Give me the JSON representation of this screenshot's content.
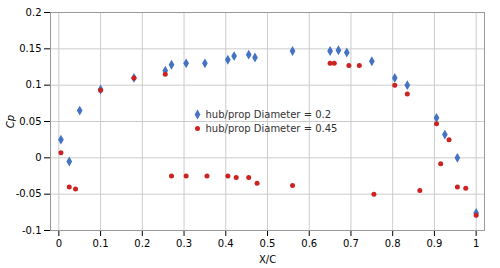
{
  "chart_data": {
    "type": "scatter",
    "xlabel": "X/C",
    "ylabel": "Cp",
    "xlim": [
      -0.02,
      1.02
    ],
    "ylim": [
      -0.1,
      0.2
    ],
    "xticks": [
      0.0,
      0.1,
      0.2,
      0.3,
      0.4,
      0.5,
      0.6,
      0.7,
      0.8,
      0.9,
      1.0
    ],
    "yticks": [
      -0.1,
      -0.05,
      0.0,
      0.05,
      0.1,
      0.15,
      0.2
    ],
    "grid": true,
    "legend": "center",
    "series": [
      {
        "name": "hub/prop Diameter = 0.2",
        "color": "#4472C4",
        "marker": "diamond",
        "x": [
          0.005,
          0.025,
          0.05,
          0.1,
          0.18,
          0.255,
          0.27,
          0.305,
          0.35,
          0.405,
          0.42,
          0.455,
          0.47,
          0.56,
          0.65,
          0.67,
          0.69,
          0.75,
          0.805,
          0.835,
          0.905,
          0.925,
          0.955,
          1.0
        ],
        "values": [
          0.025,
          -0.005,
          0.065,
          0.094,
          0.11,
          0.12,
          0.128,
          0.13,
          0.13,
          0.135,
          0.14,
          0.142,
          0.138,
          0.147,
          0.147,
          0.148,
          0.145,
          0.133,
          0.11,
          0.1,
          0.055,
          0.032,
          0.0,
          -0.076
        ]
      },
      {
        "name": "hub/prop Diameter = 0.45",
        "color": "#CC2222",
        "marker": "circle",
        "x": [
          0.005,
          0.025,
          0.04,
          0.1,
          0.18,
          0.255,
          0.27,
          0.305,
          0.355,
          0.405,
          0.425,
          0.455,
          0.475,
          0.56,
          0.65,
          0.66,
          0.695,
          0.72,
          0.755,
          0.805,
          0.835,
          0.865,
          0.905,
          0.915,
          0.935,
          0.955,
          0.975,
          1.0
        ],
        "values": [
          0.007,
          -0.04,
          -0.043,
          0.093,
          0.11,
          0.115,
          -0.025,
          -0.025,
          -0.025,
          -0.025,
          -0.027,
          -0.027,
          -0.035,
          -0.038,
          0.13,
          0.13,
          0.127,
          0.127,
          -0.05,
          0.1,
          0.088,
          -0.045,
          0.047,
          -0.008,
          0.025,
          -0.04,
          -0.042,
          -0.079
        ]
      }
    ]
  }
}
